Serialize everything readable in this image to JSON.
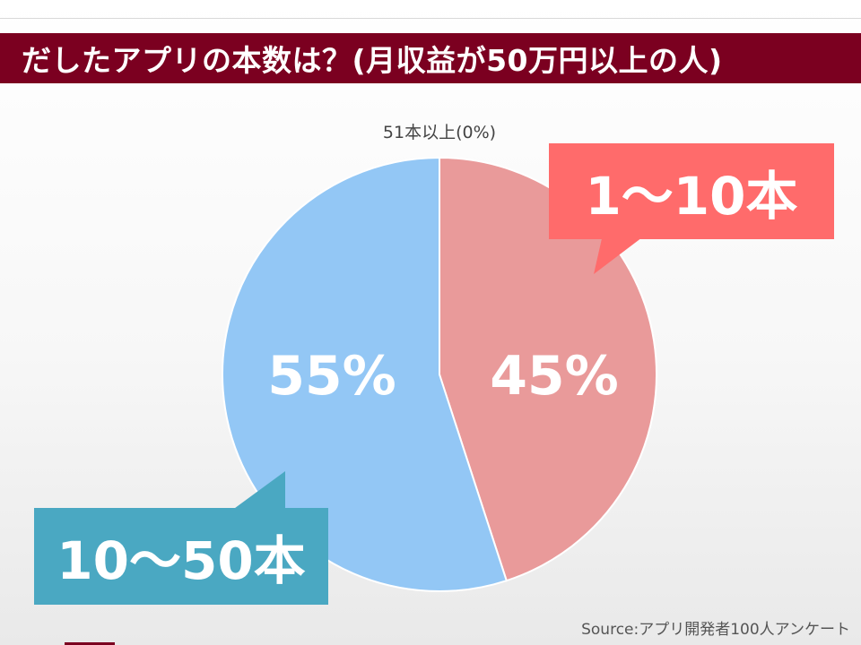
{
  "title": "だしたアプリの本数は？(月収益が50万円以上の人)",
  "chart_data": {
    "type": "pie",
    "slices": [
      {
        "label": "1〜10本",
        "value": 45,
        "value_label": "45%",
        "color": "#e99a9a"
      },
      {
        "label": "10〜50本",
        "value": 55,
        "value_label": "55%",
        "color": "#93c7f5"
      },
      {
        "label": "51本以上",
        "value": 0,
        "value_label": "51本以上(0%)",
        "color": "#cccccc"
      }
    ],
    "callouts": [
      {
        "text": "1〜10本",
        "color": "#ff6b6b"
      },
      {
        "text": "10〜50本",
        "color": "#4aa8c2"
      }
    ]
  },
  "source": "Source:アプリ開発者100人アンケート",
  "colors": {
    "title_bar": "#7b0020",
    "background": "#f3f3f3"
  }
}
